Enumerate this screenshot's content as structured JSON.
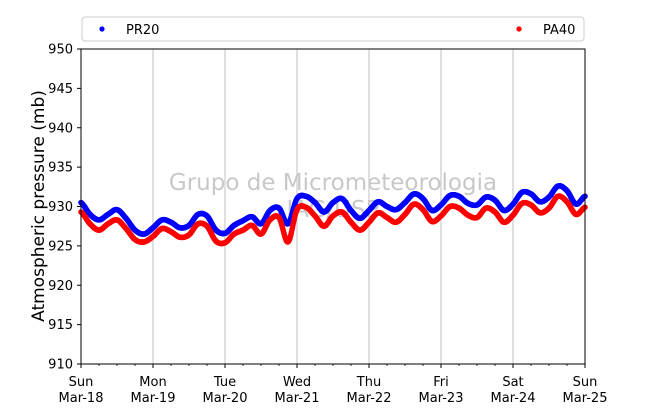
{
  "chart_data": {
    "type": "scatter",
    "ylabel": "Atmospheric pressure (mb)",
    "ylim": [
      910,
      950
    ],
    "yticks": [
      910,
      915,
      920,
      925,
      930,
      935,
      940,
      945,
      950
    ],
    "xlim_days": [
      0,
      7
    ],
    "x_ticks": [
      {
        "day": "Sun",
        "date": "Mar-18"
      },
      {
        "day": "Mon",
        "date": "Mar-19"
      },
      {
        "day": "Tue",
        "date": "Mar-20"
      },
      {
        "day": "Wed",
        "date": "Mar-21"
      },
      {
        "day": "Thu",
        "date": "Mar-22"
      },
      {
        "day": "Fri",
        "date": "Mar-23"
      },
      {
        "day": "Sat",
        "date": "Mar-24"
      },
      {
        "day": "Sun",
        "date": "Mar-25"
      }
    ],
    "grid": "vertical",
    "legend_position": "top",
    "watermark": {
      "line1": "Grupo de Micrometeorologia",
      "line2": "IAG/USP"
    },
    "series": [
      {
        "name": "PR20",
        "color": "#0000ff",
        "points": [
          [
            "Mar-18 00:00",
            930.5
          ],
          [
            "Mar-18 03:00",
            929.0
          ],
          [
            "Mar-18 06:00",
            928.3
          ],
          [
            "Mar-18 09:00",
            929.0
          ],
          [
            "Mar-18 12:00",
            929.6
          ],
          [
            "Mar-18 15:00",
            928.5
          ],
          [
            "Mar-18 18:00",
            927.0
          ],
          [
            "Mar-18 21:00",
            926.5
          ],
          [
            "Mar-19 00:00",
            927.3
          ],
          [
            "Mar-19 03:00",
            928.3
          ],
          [
            "Mar-19 06:00",
            928.0
          ],
          [
            "Mar-19 09:00",
            927.3
          ],
          [
            "Mar-19 12:00",
            927.6
          ],
          [
            "Mar-19 15:00",
            929.0
          ],
          [
            "Mar-19 18:00",
            928.8
          ],
          [
            "Mar-19 21:00",
            927.0
          ],
          [
            "Mar-20 00:00",
            926.6
          ],
          [
            "Mar-20 03:00",
            927.6
          ],
          [
            "Mar-20 06:00",
            928.2
          ],
          [
            "Mar-20 09:00",
            928.7
          ],
          [
            "Mar-20 12:00",
            927.8
          ],
          [
            "Mar-20 15:00",
            929.5
          ],
          [
            "Mar-20 18:00",
            929.8
          ],
          [
            "Mar-20 21:00",
            927.8
          ],
          [
            "Mar-21 00:00",
            931.0
          ],
          [
            "Mar-21 03:00",
            931.3
          ],
          [
            "Mar-21 06:00",
            930.5
          ],
          [
            "Mar-21 09:00",
            929.3
          ],
          [
            "Mar-21 12:00",
            930.5
          ],
          [
            "Mar-21 15:00",
            931.0
          ],
          [
            "Mar-21 18:00",
            929.5
          ],
          [
            "Mar-21 21:00",
            928.5
          ],
          [
            "Mar-22 00:00",
            929.5
          ],
          [
            "Mar-22 03:00",
            930.6
          ],
          [
            "Mar-22 06:00",
            930.0
          ],
          [
            "Mar-22 09:00",
            929.6
          ],
          [
            "Mar-22 12:00",
            930.5
          ],
          [
            "Mar-22 15:00",
            931.6
          ],
          [
            "Mar-22 18:00",
            931.0
          ],
          [
            "Mar-22 21:00",
            929.5
          ],
          [
            "Mar-23 00:00",
            930.2
          ],
          [
            "Mar-23 03:00",
            931.4
          ],
          [
            "Mar-23 06:00",
            931.3
          ],
          [
            "Mar-23 09:00",
            930.4
          ],
          [
            "Mar-23 12:00",
            930.2
          ],
          [
            "Mar-23 15:00",
            931.2
          ],
          [
            "Mar-23 18:00",
            930.8
          ],
          [
            "Mar-23 21:00",
            929.5
          ],
          [
            "Mar-24 00:00",
            930.3
          ],
          [
            "Mar-24 03:00",
            931.8
          ],
          [
            "Mar-24 06:00",
            931.6
          ],
          [
            "Mar-24 09:00",
            930.6
          ],
          [
            "Mar-24 12:00",
            931.2
          ],
          [
            "Mar-24 15:00",
            932.6
          ],
          [
            "Mar-24 18:00",
            932.0
          ],
          [
            "Mar-24 21:00",
            930.3
          ],
          [
            "Mar-25 00:00",
            931.3
          ]
        ]
      },
      {
        "name": "PA40",
        "color": "#ff0000",
        "points": [
          [
            "Mar-18 00:00",
            929.3
          ],
          [
            "Mar-18 03:00",
            927.8
          ],
          [
            "Mar-18 06:00",
            927.0
          ],
          [
            "Mar-18 09:00",
            927.8
          ],
          [
            "Mar-18 12:00",
            928.3
          ],
          [
            "Mar-18 15:00",
            927.2
          ],
          [
            "Mar-18 18:00",
            925.8
          ],
          [
            "Mar-18 21:00",
            925.5
          ],
          [
            "Mar-19 00:00",
            926.2
          ],
          [
            "Mar-19 03:00",
            927.2
          ],
          [
            "Mar-19 06:00",
            926.8
          ],
          [
            "Mar-19 09:00",
            926.1
          ],
          [
            "Mar-19 12:00",
            926.4
          ],
          [
            "Mar-19 15:00",
            927.8
          ],
          [
            "Mar-19 18:00",
            927.5
          ],
          [
            "Mar-19 21:00",
            925.6
          ],
          [
            "Mar-20 00:00",
            925.4
          ],
          [
            "Mar-20 03:00",
            926.5
          ],
          [
            "Mar-20 06:00",
            927.0
          ],
          [
            "Mar-20 09:00",
            927.6
          ],
          [
            "Mar-20 12:00",
            926.5
          ],
          [
            "Mar-20 15:00",
            928.3
          ],
          [
            "Mar-20 18:00",
            928.6
          ],
          [
            "Mar-20 21:00",
            925.5
          ],
          [
            "Mar-21 00:00",
            929.6
          ],
          [
            "Mar-21 03:00",
            929.9
          ],
          [
            "Mar-21 06:00",
            928.8
          ],
          [
            "Mar-21 09:00",
            927.5
          ],
          [
            "Mar-21 12:00",
            928.8
          ],
          [
            "Mar-21 15:00",
            929.3
          ],
          [
            "Mar-21 18:00",
            928.0
          ],
          [
            "Mar-21 21:00",
            927.0
          ],
          [
            "Mar-22 00:00",
            928.0
          ],
          [
            "Mar-22 03:00",
            929.2
          ],
          [
            "Mar-22 06:00",
            928.6
          ],
          [
            "Mar-22 09:00",
            928.0
          ],
          [
            "Mar-22 12:00",
            929.0
          ],
          [
            "Mar-22 15:00",
            930.3
          ],
          [
            "Mar-22 18:00",
            929.6
          ],
          [
            "Mar-22 21:00",
            928.1
          ],
          [
            "Mar-23 00:00",
            928.8
          ],
          [
            "Mar-23 03:00",
            930.0
          ],
          [
            "Mar-23 06:00",
            929.8
          ],
          [
            "Mar-23 09:00",
            928.9
          ],
          [
            "Mar-23 12:00",
            928.6
          ],
          [
            "Mar-23 15:00",
            929.8
          ],
          [
            "Mar-23 18:00",
            929.3
          ],
          [
            "Mar-23 21:00",
            928.0
          ],
          [
            "Mar-24 00:00",
            928.9
          ],
          [
            "Mar-24 03:00",
            930.4
          ],
          [
            "Mar-24 06:00",
            930.2
          ],
          [
            "Mar-24 09:00",
            929.2
          ],
          [
            "Mar-24 12:00",
            929.8
          ],
          [
            "Mar-24 15:00",
            931.3
          ],
          [
            "Mar-24 18:00",
            930.6
          ],
          [
            "Mar-24 21:00",
            929.0
          ],
          [
            "Mar-25 00:00",
            929.9
          ]
        ]
      }
    ]
  }
}
